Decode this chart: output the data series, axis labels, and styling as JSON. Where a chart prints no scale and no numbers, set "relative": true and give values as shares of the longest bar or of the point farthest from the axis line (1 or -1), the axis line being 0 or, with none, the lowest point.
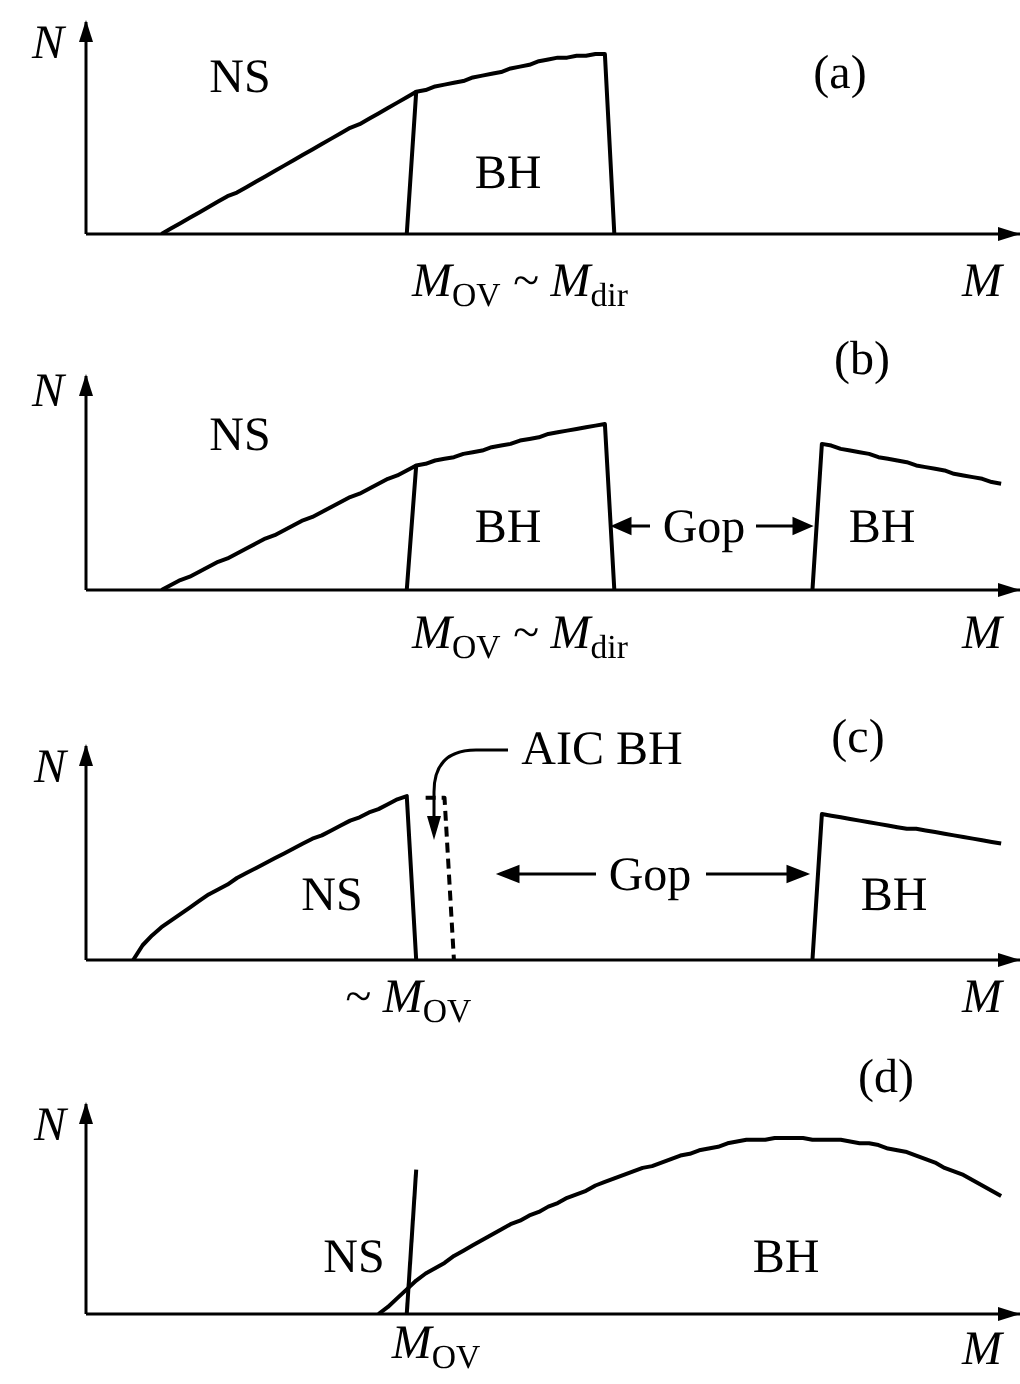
{
  "chart_data": [
    {
      "type": "line",
      "title": "(a)",
      "xlabel": "M",
      "ylabel": "N",
      "relative": true,
      "marker": "none",
      "annotations": [
        "NS",
        "BH",
        "M$_{OV}$ ~ M$_{dir}$"
      ],
      "categories": [
        null,
        null,
        null,
        null,
        null,
        null,
        null,
        null,
        null,
        null,
        null,
        null,
        null,
        null,
        null,
        null,
        null,
        null,
        null,
        null,
        null,
        null,
        null,
        null,
        null,
        null,
        null,
        null,
        null,
        null,
        null,
        null,
        null,
        null,
        null,
        null,
        null,
        null,
        null,
        null,
        null,
        null,
        null,
        null,
        null,
        null,
        null,
        null,
        null,
        null,
        null,
        null,
        null,
        null,
        null,
        null,
        null,
        null,
        null,
        null,
        null,
        null,
        null,
        null,
        null,
        null,
        null,
        null,
        null,
        null,
        null,
        null,
        null,
        null,
        null,
        null,
        null,
        null,
        null,
        null,
        null,
        null,
        null,
        null,
        null,
        null,
        null,
        null,
        null,
        null,
        null,
        null,
        null,
        null,
        null,
        null,
        null,
        null,
        null,
        null
      ],
      "series": [
        {
          "color": "#000000",
          "values": [
            null,
            null,
            null,
            null,
            null,
            null,
            null,
            null,
            0,
            0.03,
            0.06,
            0.09,
            0.12,
            0.15,
            0.18,
            0.21,
            0.23,
            0.26,
            0.29,
            0.32,
            0.35,
            0.38,
            0.41,
            0.44,
            0.47,
            0.5,
            0.53,
            0.56,
            0.59,
            0.61,
            0.64,
            0.67,
            0.7,
            0.73,
            0.76,
            0.79,
            null,
            null,
            null,
            null,
            null,
            null,
            null,
            null,
            null,
            null,
            null,
            null,
            null,
            null,
            null,
            null,
            null,
            null,
            null,
            null,
            null,
            null,
            null,
            null,
            null,
            null,
            null,
            null,
            null,
            null,
            null,
            null,
            null,
            null,
            null,
            null,
            null,
            null,
            null,
            null,
            null,
            null,
            null,
            null,
            null,
            null,
            null,
            null,
            null,
            null,
            null,
            null,
            null,
            null,
            null,
            null,
            null,
            null,
            null,
            null,
            null,
            null,
            null,
            null
          ]
        },
        {
          "color": "#000000",
          "values": [
            null,
            null,
            null,
            null,
            null,
            null,
            null,
            null,
            null,
            null,
            null,
            null,
            null,
            null,
            null,
            null,
            null,
            null,
            null,
            null,
            null,
            null,
            null,
            null,
            null,
            null,
            null,
            null,
            null,
            null,
            null,
            null,
            null,
            null,
            0,
            0.79,
            0.8,
            0.82,
            0.83,
            0.84,
            0.85,
            0.87,
            0.88,
            0.89,
            0.9,
            0.92,
            0.93,
            0.94,
            0.96,
            0.97,
            0.98,
            0.98,
            0.99,
            0.99,
            1,
            1,
            0,
            null,
            null,
            null,
            null,
            null,
            null,
            null,
            null,
            null,
            null,
            null,
            null,
            null,
            null,
            null,
            null,
            null,
            null,
            null,
            null,
            null,
            null,
            null,
            null,
            null,
            null,
            null,
            null,
            null,
            null,
            null,
            null,
            null,
            null,
            null,
            null,
            null,
            null,
            null,
            null,
            null,
            null,
            null
          ]
        }
      ]
    },
    {
      "type": "line",
      "title": "(b)",
      "xlabel": "M",
      "ylabel": "N",
      "relative": true,
      "marker": "none",
      "annotations": [
        "NS",
        "BH",
        "Gop",
        "BH",
        "M$_{OV}$ ~ M$_{dir}$"
      ],
      "categories": [
        null,
        null,
        null,
        null,
        null,
        null,
        null,
        null,
        null,
        null,
        null,
        null,
        null,
        null,
        null,
        null,
        null,
        null,
        null,
        null,
        null,
        null,
        null,
        null,
        null,
        null,
        null,
        null,
        null,
        null,
        null,
        null,
        null,
        null,
        null,
        null,
        null,
        null,
        null,
        null,
        null,
        null,
        null,
        null,
        null,
        null,
        null,
        null,
        null,
        null,
        null,
        null,
        null,
        null,
        null,
        null,
        null,
        null,
        null,
        null,
        null,
        null,
        null,
        null,
        null,
        null,
        null,
        null,
        null,
        null,
        null,
        null,
        null,
        null,
        null,
        null,
        null,
        null,
        null,
        null,
        null,
        null,
        null,
        null,
        null,
        null,
        null,
        null,
        null,
        null,
        null,
        null,
        null,
        null,
        null,
        null,
        null,
        null,
        null,
        null
      ],
      "series": [
        {
          "color": "#000000",
          "values": [
            null,
            null,
            null,
            null,
            null,
            null,
            null,
            null,
            0,
            0.03,
            0.06,
            0.08,
            0.11,
            0.14,
            0.17,
            0.19,
            0.22,
            0.25,
            0.28,
            0.31,
            0.33,
            0.36,
            0.39,
            0.42,
            0.44,
            0.47,
            0.5,
            0.53,
            0.56,
            0.58,
            0.61,
            0.64,
            0.67,
            0.69,
            0.72,
            0.75,
            null,
            null,
            null,
            null,
            null,
            null,
            null,
            null,
            null,
            null,
            null,
            null,
            null,
            null,
            null,
            null,
            null,
            null,
            null,
            null,
            null,
            null,
            null,
            null,
            null,
            null,
            null,
            null,
            null,
            null,
            null,
            null,
            null,
            null,
            null,
            null,
            null,
            null,
            null,
            null,
            null,
            null,
            null,
            null,
            null,
            null,
            null,
            null,
            null,
            null,
            null,
            null,
            null,
            null,
            null,
            null,
            null,
            null,
            null,
            null,
            null,
            null,
            null,
            null
          ]
        },
        {
          "color": "#000000",
          "values": [
            null,
            null,
            null,
            null,
            null,
            null,
            null,
            null,
            null,
            null,
            null,
            null,
            null,
            null,
            null,
            null,
            null,
            null,
            null,
            null,
            null,
            null,
            null,
            null,
            null,
            null,
            null,
            null,
            null,
            null,
            null,
            null,
            null,
            null,
            0,
            0.75,
            0.76,
            0.78,
            0.79,
            0.8,
            0.82,
            0.83,
            0.84,
            0.86,
            0.87,
            0.88,
            0.9,
            0.91,
            0.92,
            0.94,
            0.95,
            0.96,
            0.97,
            0.98,
            0.99,
            1,
            0,
            null,
            null,
            null,
            null,
            null,
            null,
            null,
            null,
            null,
            null,
            null,
            null,
            null,
            null,
            null,
            null,
            null,
            null,
            null,
            null,
            null,
            null,
            null,
            null,
            null,
            null,
            null,
            null,
            null,
            null,
            null,
            null,
            null,
            null,
            null,
            null,
            null,
            null,
            null,
            null,
            null,
            null,
            null
          ]
        },
        {
          "color": "#000000",
          "values": [
            null,
            null,
            null,
            null,
            null,
            null,
            null,
            null,
            null,
            null,
            null,
            null,
            null,
            null,
            null,
            null,
            null,
            null,
            null,
            null,
            null,
            null,
            null,
            null,
            null,
            null,
            null,
            null,
            null,
            null,
            null,
            null,
            null,
            null,
            null,
            null,
            null,
            null,
            null,
            null,
            null,
            null,
            null,
            null,
            null,
            null,
            null,
            null,
            null,
            null,
            null,
            null,
            null,
            null,
            null,
            null,
            null,
            null,
            null,
            null,
            null,
            null,
            null,
            null,
            null,
            null,
            null,
            null,
            null,
            null,
            null,
            null,
            null,
            null,
            null,
            null,
            null,
            0,
            0.88,
            0.87,
            0.85,
            0.84,
            0.83,
            0.82,
            0.8,
            0.79,
            0.78,
            0.77,
            0.75,
            0.74,
            0.73,
            0.72,
            0.7,
            0.69,
            0.68,
            0.67,
            0.65,
            0.64,
            null,
            null
          ]
        }
      ]
    },
    {
      "type": "line",
      "title": "(c)",
      "xlabel": "M",
      "ylabel": "N",
      "relative": true,
      "marker": "none",
      "annotations": [
        "AIC BH",
        "NS",
        "Gop",
        "BH",
        "~ M$_{OV}$"
      ],
      "categories": [
        null,
        null,
        null,
        null,
        null,
        null,
        null,
        null,
        null,
        null,
        null,
        null,
        null,
        null,
        null,
        null,
        null,
        null,
        null,
        null,
        null,
        null,
        null,
        null,
        null,
        null,
        null,
        null,
        null,
        null,
        null,
        null,
        null,
        null,
        null,
        null,
        null,
        null,
        null,
        null,
        null,
        null,
        null,
        null,
        null,
        null,
        null,
        null,
        null,
        null,
        null,
        null,
        null,
        null,
        null,
        null,
        null,
        null,
        null,
        null,
        null,
        null,
        null,
        null,
        null,
        null,
        null,
        null,
        null,
        null,
        null,
        null,
        null,
        null,
        null,
        null,
        null,
        null,
        null,
        null,
        null,
        null,
        null,
        null,
        null,
        null,
        null,
        null,
        null,
        null,
        null,
        null,
        null,
        null,
        null,
        null,
        null,
        null,
        null,
        null
      ],
      "series": [
        {
          "color": "#000000",
          "values": [
            null,
            null,
            null,
            null,
            null,
            0,
            0.09,
            0.15,
            0.2,
            0.24,
            0.28,
            0.32,
            0.36,
            0.4,
            0.43,
            0.46,
            0.5,
            0.53,
            0.56,
            0.59,
            0.62,
            0.65,
            0.68,
            0.71,
            0.74,
            0.76,
            0.79,
            0.82,
            0.85,
            0.87,
            0.9,
            0.92,
            0.95,
            0.98,
            1,
            0,
            null,
            null,
            null,
            null,
            null,
            null,
            null,
            null,
            null,
            null,
            null,
            null,
            null,
            null,
            null,
            null,
            null,
            null,
            null,
            null,
            null,
            null,
            null,
            null,
            null,
            null,
            null,
            null,
            null,
            null,
            null,
            null,
            null,
            null,
            null,
            null,
            null,
            null,
            null,
            null,
            null,
            null,
            null,
            null,
            null,
            null,
            null,
            null,
            null,
            null,
            null,
            null,
            null,
            null,
            null,
            null,
            null,
            null,
            null,
            null,
            null,
            null,
            null,
            null
          ]
        },
        {
          "color": "#000000",
          "line_style": "dashed",
          "values": [
            null,
            null,
            null,
            null,
            null,
            null,
            null,
            null,
            null,
            null,
            null,
            null,
            null,
            null,
            null,
            null,
            null,
            null,
            null,
            null,
            null,
            null,
            null,
            null,
            null,
            null,
            null,
            null,
            null,
            null,
            null,
            null,
            null,
            null,
            null,
            null,
            0.99,
            0.99,
            0.99,
            0,
            null,
            null,
            null,
            null,
            null,
            null,
            null,
            null,
            null,
            null,
            null,
            null,
            null,
            null,
            null,
            null,
            null,
            null,
            null,
            null,
            null,
            null,
            null,
            null,
            null,
            null,
            null,
            null,
            null,
            null,
            null,
            null,
            null,
            null,
            null,
            null,
            null,
            null,
            null,
            null,
            null,
            null,
            null,
            null,
            null,
            null,
            null,
            null,
            null,
            null,
            null,
            null,
            null,
            null,
            null,
            null,
            null,
            null,
            null,
            null
          ]
        },
        {
          "color": "#000000",
          "values": [
            null,
            null,
            null,
            null,
            null,
            null,
            null,
            null,
            null,
            null,
            null,
            null,
            null,
            null,
            null,
            null,
            null,
            null,
            null,
            null,
            null,
            null,
            null,
            null,
            null,
            null,
            null,
            null,
            null,
            null,
            null,
            null,
            null,
            null,
            null,
            null,
            null,
            null,
            null,
            null,
            null,
            null,
            null,
            null,
            null,
            null,
            null,
            null,
            null,
            null,
            null,
            null,
            null,
            null,
            null,
            null,
            null,
            null,
            null,
            null,
            null,
            null,
            null,
            null,
            null,
            null,
            null,
            null,
            null,
            null,
            null,
            null,
            null,
            null,
            null,
            null,
            null,
            0,
            0.89,
            0.88,
            0.87,
            0.86,
            0.85,
            0.84,
            0.83,
            0.82,
            0.81,
            0.8,
            0.8,
            0.79,
            0.78,
            0.77,
            0.76,
            0.75,
            0.74,
            0.73,
            0.72,
            0.71,
            null,
            null
          ]
        }
      ]
    },
    {
      "type": "line",
      "title": "(d)",
      "xlabel": "M",
      "ylabel": "N",
      "relative": true,
      "marker": "none",
      "annotations": [
        "NS",
        "BH",
        "M$_{OV}$"
      ],
      "categories": [
        null,
        null,
        null,
        null,
        null,
        null,
        null,
        null,
        null,
        null,
        null,
        null,
        null,
        null,
        null,
        null,
        null,
        null,
        null,
        null,
        null,
        null,
        null,
        null,
        null,
        null,
        null,
        null,
        null,
        null,
        null,
        null,
        null,
        null,
        null,
        null,
        null,
        null,
        null,
        null,
        null,
        null,
        null,
        null,
        null,
        null,
        null,
        null,
        null,
        null,
        null,
        null,
        null,
        null,
        null,
        null,
        null,
        null,
        null,
        null,
        null,
        null,
        null,
        null,
        null,
        null,
        null,
        null,
        null,
        null,
        null,
        null,
        null,
        null,
        null,
        null,
        null,
        null,
        null,
        null,
        null,
        null,
        null,
        null,
        null,
        null,
        null,
        null,
        null,
        null,
        null,
        null,
        null,
        null,
        null,
        null,
        null,
        null,
        null,
        null
      ],
      "series": [
        {
          "color": "#000000",
          "values": [
            null,
            null,
            null,
            null,
            null,
            null,
            null,
            null,
            null,
            null,
            null,
            null,
            null,
            null,
            null,
            null,
            null,
            null,
            null,
            null,
            null,
            null,
            null,
            null,
            null,
            null,
            null,
            null,
            null,
            null,
            null,
            0,
            0.04,
            0.09,
            0.14,
            0.19,
            0.23,
            0.26,
            0.29,
            0.33,
            0.36,
            0.39,
            0.42,
            0.45,
            0.48,
            0.51,
            0.53,
            0.56,
            0.58,
            0.61,
            0.63,
            0.66,
            0.68,
            0.7,
            0.73,
            0.75,
            0.77,
            0.79,
            0.81,
            0.83,
            0.84,
            0.86,
            0.88,
            0.9,
            0.91,
            0.93,
            0.94,
            0.95,
            0.97,
            0.98,
            0.99,
            0.99,
            0.99,
            1,
            1,
            1,
            1,
            0.99,
            0.99,
            0.99,
            0.99,
            0.98,
            0.97,
            0.97,
            0.96,
            0.94,
            0.93,
            0.92,
            0.9,
            0.88,
            0.86,
            0.83,
            0.81,
            0.79,
            0.76,
            0.73,
            0.7,
            0.67,
            null,
            null
          ]
        },
        {
          "color": "#000000",
          "values": [
            null,
            null,
            null,
            null,
            null,
            null,
            null,
            null,
            null,
            null,
            null,
            null,
            null,
            null,
            null,
            null,
            null,
            null,
            null,
            null,
            null,
            null,
            null,
            null,
            null,
            null,
            null,
            null,
            null,
            null,
            null,
            null,
            null,
            null,
            0,
            0.82,
            null,
            null,
            null,
            null,
            null,
            null,
            null,
            null,
            null,
            null,
            null,
            null,
            null,
            null,
            null,
            null,
            null,
            null,
            null,
            null,
            null,
            null,
            null,
            null,
            null,
            null,
            null,
            null,
            null,
            null,
            null,
            null,
            null,
            null,
            null,
            null,
            null,
            null,
            null,
            null,
            null,
            null,
            null,
            null,
            null,
            null,
            null,
            null,
            null,
            null,
            null,
            null,
            null,
            null,
            null,
            null,
            null,
            null,
            null,
            null,
            null,
            null,
            null,
            null
          ]
        }
      ]
    }
  ]
}
